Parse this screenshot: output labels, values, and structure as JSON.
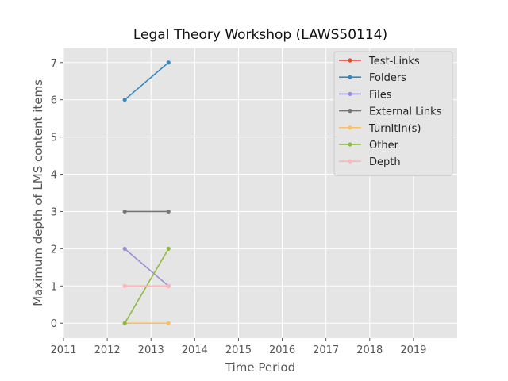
{
  "chart_data": {
    "type": "line",
    "title": "Legal Theory Workshop (LAWS50114)",
    "xlabel": "Time Period",
    "ylabel": "Maximum depth of LMS content items",
    "xlim": [
      2011,
      2020
    ],
    "ylim": [
      -0.4,
      7.4
    ],
    "xticks": [
      "2011",
      "2012",
      "2013",
      "2014",
      "2015",
      "2016",
      "2017",
      "2018",
      "2019"
    ],
    "yticks": [
      "0",
      "1",
      "2",
      "3",
      "4",
      "5",
      "6",
      "7"
    ],
    "grid": true,
    "legend_position": "top-right",
    "x": [
      2012.4,
      2013.4
    ],
    "series": [
      {
        "name": "Test-Links",
        "color": "#e24a33",
        "values": [
          null,
          null
        ]
      },
      {
        "name": "Folders",
        "color": "#348abd",
        "values": [
          6,
          7
        ]
      },
      {
        "name": "Files",
        "color": "#988ed5",
        "values": [
          2,
          1
        ]
      },
      {
        "name": "External Links",
        "color": "#777777",
        "values": [
          3,
          3
        ]
      },
      {
        "name": "TurnItIn(s)",
        "color": "#fbc15e",
        "values": [
          0,
          0
        ]
      },
      {
        "name": "Other",
        "color": "#8eba42",
        "values": [
          0,
          2
        ]
      },
      {
        "name": "Depth",
        "color": "#ffb5b8",
        "values": [
          1,
          1
        ]
      }
    ]
  }
}
